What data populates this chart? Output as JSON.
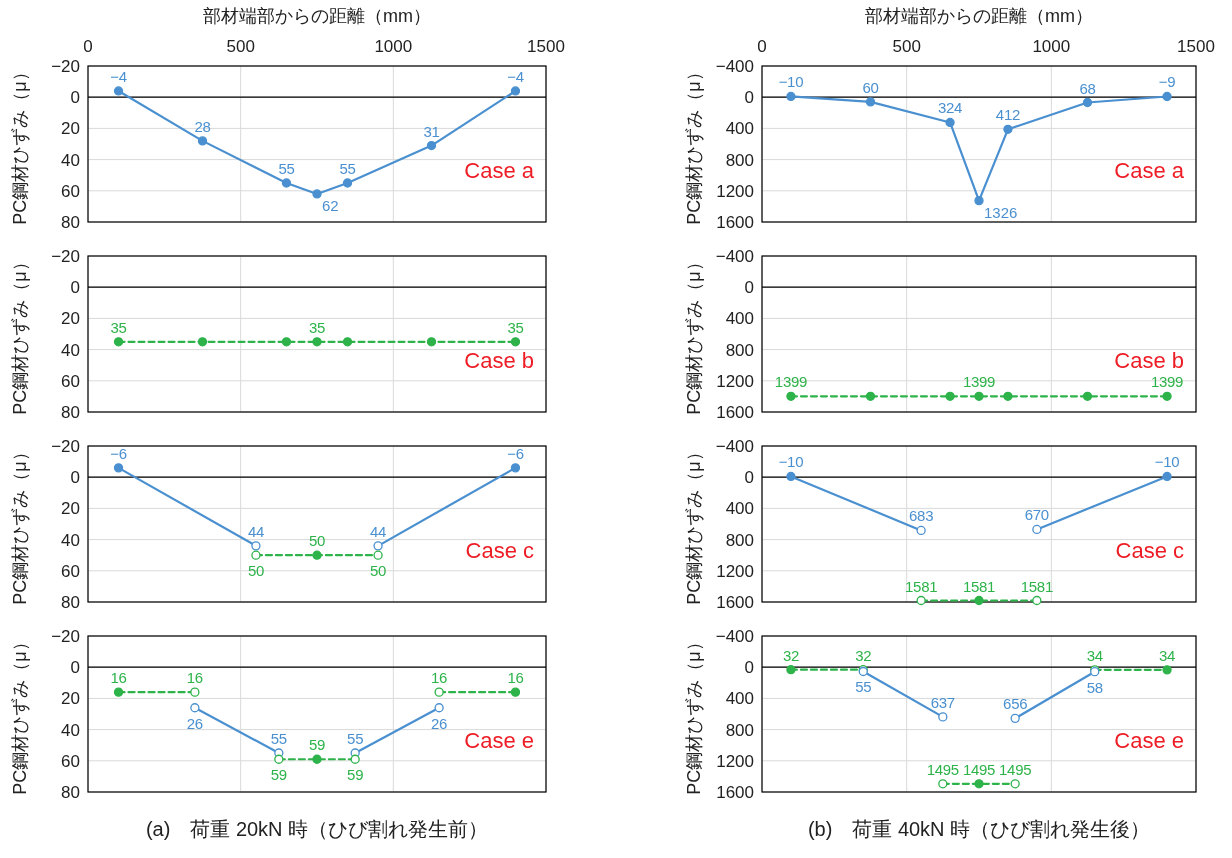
{
  "chart_data": [
    {
      "type": "line",
      "xlabel": "部材端部からの距離（mm）",
      "ylabel": "PC鋼材ひずみ（μ）",
      "xlim": [
        0,
        1500
      ],
      "xticks": [
        0,
        500,
        1000,
        1500
      ],
      "ylim": [
        80,
        -20
      ],
      "yticks": [
        -20,
        0,
        20,
        40,
        60,
        80
      ],
      "grid": true,
      "marker": "circle",
      "data_labels": true,
      "tick_labels": "xy",
      "ref_lines": [
        {
          "axis": "y",
          "value": 0,
          "color": "#000000"
        }
      ],
      "annotations": [
        "Case a"
      ],
      "series": [
        {
          "color": "#4a90d0",
          "line_style": "solid",
          "x": [
            100,
            375,
            650,
            750,
            850,
            1125,
            1400
          ],
          "values": [
            -4,
            28,
            55,
            62,
            55,
            31,
            -4
          ]
        }
      ]
    },
    {
      "type": "line",
      "ylabel": "PC鋼材ひずみ（μ）",
      "xlim": [
        0,
        1500
      ],
      "xticks": [
        0,
        500,
        1000,
        1500
      ],
      "ylim": [
        80,
        -20
      ],
      "yticks": [
        -20,
        0,
        20,
        40,
        60,
        80
      ],
      "grid": true,
      "marker": "circle",
      "tick_labels": "y",
      "ref_lines": [
        {
          "axis": "y",
          "value": 0,
          "color": "#000000"
        }
      ],
      "annotations": [
        "Case b"
      ],
      "series": [
        {
          "color": "#2db34a",
          "line_style": "dashed",
          "x": [
            100,
            375,
            650,
            750,
            850,
            1125,
            1400
          ],
          "values": [
            35,
            35,
            35,
            35,
            35,
            35,
            35
          ],
          "value_labels": [
            "35",
            null,
            null,
            "35",
            null,
            null,
            "35"
          ]
        }
      ]
    },
    {
      "type": "line",
      "ylabel": "PC鋼材ひずみ（μ）",
      "xlim": [
        0,
        1500
      ],
      "xticks": [
        0,
        500,
        1000,
        1500
      ],
      "ylim": [
        80,
        -20
      ],
      "yticks": [
        -20,
        0,
        20,
        40,
        60,
        80
      ],
      "grid": true,
      "marker": "circle",
      "data_labels": true,
      "tick_labels": "y",
      "ref_lines": [
        {
          "axis": "y",
          "value": 0,
          "color": "#000000"
        }
      ],
      "annotations": [
        "Case c"
      ],
      "series": [
        {
          "color": "#4a90d0",
          "line_style": "solid",
          "x": [
            100,
            550
          ],
          "values": [
            -6,
            44
          ],
          "colors": [
            "#4a90d0",
            "#ffffff"
          ]
        },
        {
          "color": "#4a90d0",
          "line_style": "solid",
          "x": [
            950,
            1400
          ],
          "values": [
            44,
            -6
          ],
          "colors": [
            "#ffffff",
            "#4a90d0"
          ]
        },
        {
          "color": "#2db34a",
          "line_style": "dashed",
          "x": [
            550,
            750,
            950
          ],
          "values": [
            50,
            50,
            50
          ],
          "colors": [
            "#ffffff",
            "#2db34a",
            "#ffffff"
          ]
        }
      ]
    },
    {
      "type": "line",
      "ylabel": "PC鋼材ひずみ（μ）",
      "xlim": [
        0,
        1500
      ],
      "xticks": [
        0,
        500,
        1000,
        1500
      ],
      "ylim": [
        80,
        -20
      ],
      "yticks": [
        -20,
        0,
        20,
        40,
        60,
        80
      ],
      "grid": true,
      "marker": "circle",
      "data_labels": true,
      "tick_labels": "y",
      "ref_lines": [
        {
          "axis": "y",
          "value": 0,
          "color": "#000000"
        }
      ],
      "annotations": [
        "Case e",
        "(a)　荷重 20kN 時（ひび割れ発生前）"
      ],
      "series": [
        {
          "color": "#2db34a",
          "line_style": "dashed",
          "x": [
            100,
            350
          ],
          "values": [
            16,
            16
          ],
          "colors": [
            "#2db34a",
            "#ffffff"
          ]
        },
        {
          "color": "#2db34a",
          "line_style": "dashed",
          "x": [
            1150,
            1400
          ],
          "values": [
            16,
            16
          ],
          "colors": [
            "#ffffff",
            "#2db34a"
          ]
        },
        {
          "color": "#4a90d0",
          "line_style": "solid",
          "x": [
            350,
            625
          ],
          "values": [
            26,
            55
          ],
          "colors": [
            "#ffffff",
            "#ffffff"
          ]
        },
        {
          "color": "#4a90d0",
          "line_style": "solid",
          "x": [
            875,
            1150
          ],
          "values": [
            55,
            26
          ],
          "colors": [
            "#ffffff",
            "#ffffff"
          ]
        },
        {
          "color": "#2db34a",
          "line_style": "dashed",
          "x": [
            625,
            750,
            875
          ],
          "values": [
            59,
            59,
            59
          ],
          "colors": [
            "#ffffff",
            "#2db34a",
            "#ffffff"
          ]
        }
      ]
    },
    {
      "type": "line",
      "xlabel": "部材端部からの距離（mm）",
      "ylabel": "PC鋼材ひずみ（μ）",
      "xlim": [
        0,
        1500
      ],
      "xticks": [
        0,
        500,
        1000,
        1500
      ],
      "ylim": [
        1600,
        -400
      ],
      "yticks": [
        -400,
        0,
        400,
        800,
        1200,
        1600
      ],
      "grid": true,
      "marker": "circle",
      "data_labels": true,
      "tick_labels": "xy",
      "ref_lines": [
        {
          "axis": "y",
          "value": 0,
          "color": "#000000"
        }
      ],
      "annotations": [
        "Case a"
      ],
      "series": [
        {
          "color": "#4a90d0",
          "line_style": "solid",
          "x": [
            100,
            375,
            650,
            750,
            850,
            1125,
            1400
          ],
          "values": [
            -10,
            60,
            324,
            1326,
            412,
            68,
            -9
          ]
        }
      ]
    },
    {
      "type": "line",
      "ylabel": "PC鋼材ひずみ（μ）",
      "xlim": [
        0,
        1500
      ],
      "xticks": [
        0,
        500,
        1000,
        1500
      ],
      "ylim": [
        1600,
        -400
      ],
      "yticks": [
        -400,
        0,
        400,
        800,
        1200,
        1600
      ],
      "grid": true,
      "marker": "circle",
      "tick_labels": "y",
      "ref_lines": [
        {
          "axis": "y",
          "value": 0,
          "color": "#000000"
        }
      ],
      "annotations": [
        "Case b"
      ],
      "series": [
        {
          "color": "#2db34a",
          "line_style": "dashed",
          "x": [
            100,
            375,
            650,
            750,
            850,
            1125,
            1400
          ],
          "values": [
            1399,
            1399,
            1399,
            1399,
            1399,
            1399,
            1399
          ],
          "value_labels": [
            "1399",
            null,
            null,
            "1399",
            null,
            null,
            "1399"
          ]
        }
      ]
    },
    {
      "type": "line",
      "ylabel": "PC鋼材ひずみ（μ）",
      "xlim": [
        0,
        1500
      ],
      "xticks": [
        0,
        500,
        1000,
        1500
      ],
      "ylim": [
        1600,
        -400
      ],
      "yticks": [
        -400,
        0,
        400,
        800,
        1200,
        1600
      ],
      "grid": true,
      "marker": "circle",
      "data_labels": true,
      "tick_labels": "y",
      "ref_lines": [
        {
          "axis": "y",
          "value": 0,
          "color": "#000000"
        }
      ],
      "annotations": [
        "Case c"
      ],
      "series": [
        {
          "color": "#4a90d0",
          "line_style": "solid",
          "x": [
            100,
            550
          ],
          "values": [
            -10,
            683
          ],
          "colors": [
            "#4a90d0",
            "#ffffff"
          ]
        },
        {
          "color": "#4a90d0",
          "line_style": "solid",
          "x": [
            950,
            1400
          ],
          "values": [
            670,
            -10
          ],
          "colors": [
            "#ffffff",
            "#4a90d0"
          ]
        },
        {
          "color": "#2db34a",
          "line_style": "dashed",
          "x": [
            550,
            750,
            950
          ],
          "values": [
            1581,
            1581,
            1581
          ],
          "colors": [
            "#ffffff",
            "#2db34a",
            "#ffffff"
          ]
        }
      ]
    },
    {
      "type": "line",
      "ylabel": "PC鋼材ひずみ（μ）",
      "xlim": [
        0,
        1500
      ],
      "xticks": [
        0,
        500,
        1000,
        1500
      ],
      "ylim": [
        1600,
        -400
      ],
      "yticks": [
        -400,
        0,
        400,
        800,
        1200,
        1600
      ],
      "grid": true,
      "marker": "circle",
      "data_labels": true,
      "tick_labels": "y",
      "ref_lines": [
        {
          "axis": "y",
          "value": 0,
          "color": "#000000"
        }
      ],
      "annotations": [
        "Case e",
        "(b)　荷重 40kN 時（ひび割れ発生後）"
      ],
      "series": [
        {
          "color": "#2db34a",
          "line_style": "dashed",
          "x": [
            100,
            350
          ],
          "values": [
            32,
            32
          ],
          "colors": [
            "#2db34a",
            "#ffffff"
          ]
        },
        {
          "color": "#2db34a",
          "line_style": "dashed",
          "x": [
            1150,
            1400
          ],
          "values": [
            34,
            34
          ],
          "colors": [
            "#ffffff",
            "#2db34a"
          ]
        },
        {
          "color": "#4a90d0",
          "line_style": "solid",
          "x": [
            350,
            625
          ],
          "values": [
            55,
            637
          ],
          "colors": [
            "#ffffff",
            "#ffffff"
          ]
        },
        {
          "color": "#4a90d0",
          "line_style": "solid",
          "x": [
            875,
            1150
          ],
          "values": [
            656,
            58
          ],
          "colors": [
            "#ffffff",
            "#ffffff"
          ]
        },
        {
          "color": "#2db34a",
          "line_style": "dashed",
          "x": [
            625,
            750,
            875
          ],
          "values": [
            1495,
            1495,
            1495
          ],
          "colors": [
            "#ffffff",
            "#2db34a",
            "#ffffff"
          ]
        }
      ]
    }
  ]
}
